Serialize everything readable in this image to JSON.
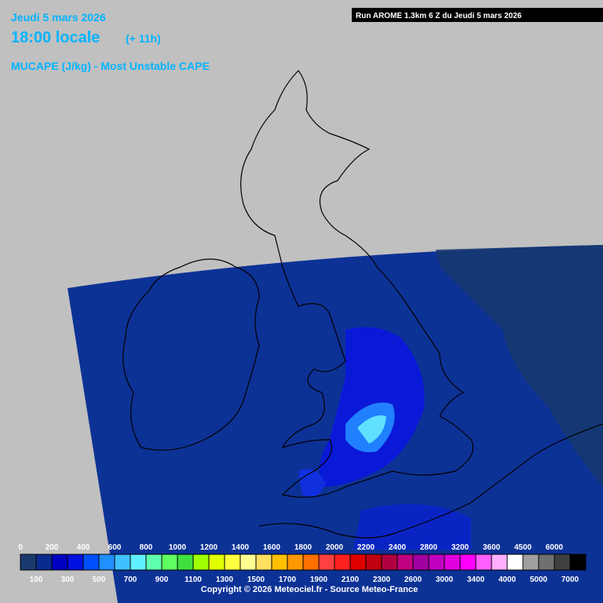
{
  "header": {
    "date": "Jeudi 5 mars 2026",
    "time": "18:00 locale",
    "offset": "(+ 11h)",
    "parameter": "MUCAPE (J/kg) - Most Unstable CAPE",
    "run": "Run AROME 1.3km 6 Z du Jeudi 5 mars 2026"
  },
  "legend": {
    "top_labels": [
      "0",
      "200",
      "400",
      "600",
      "800",
      "1000",
      "1200",
      "1400",
      "1600",
      "1800",
      "2000",
      "2200",
      "2400",
      "2800",
      "3200",
      "3600",
      "4500",
      "6000"
    ],
    "bottom_labels": [
      "100",
      "300",
      "500",
      "700",
      "900",
      "1100",
      "1300",
      "1500",
      "1700",
      "1900",
      "2100",
      "2300",
      "2600",
      "3000",
      "3400",
      "4000",
      "5000",
      "7000"
    ],
    "colors": [
      "#1a3a6e",
      "#0a2a90",
      "#0000c0",
      "#0010e0",
      "#0050ff",
      "#1e90ff",
      "#40c0ff",
      "#60f0ff",
      "#60ffb0",
      "#60ff60",
      "#40e040",
      "#a0ff00",
      "#e0ff00",
      "#ffff40",
      "#ffff90",
      "#ffe060",
      "#ffc000",
      "#ff9800",
      "#ff7000",
      "#ff4040",
      "#ff2020",
      "#e00000",
      "#c00010",
      "#b00040",
      "#c00080",
      "#a000a0",
      "#c000c0",
      "#e000e0",
      "#ff00ff",
      "#ff60ff",
      "#ffb0ff",
      "#ffffff",
      "#a0a0a0",
      "#707070",
      "#404040",
      "#000000"
    ]
  },
  "footer": {
    "copyright": "Copyright © 2026 Meteociel.fr - Source Meteo-France"
  }
}
